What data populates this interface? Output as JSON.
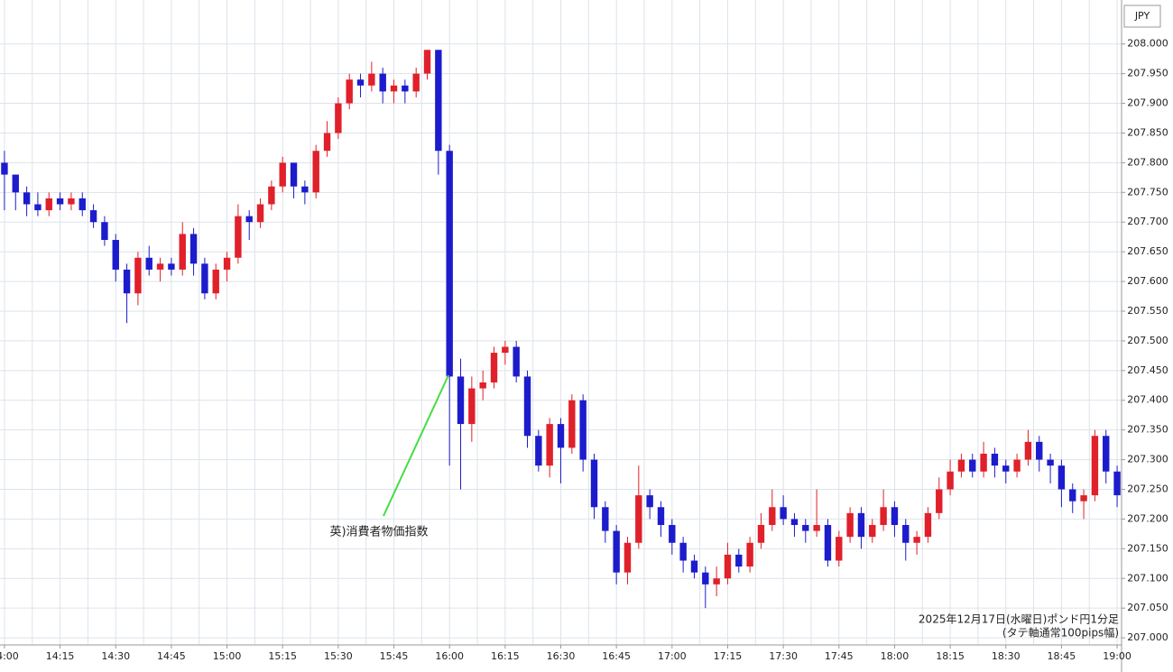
{
  "chart_data": {
    "type": "candlestick",
    "currency": "JPY",
    "note_title": "2025年12月17日(水曜日)ポンド円1分足",
    "note_sub": "(タテ軸通常100pips幅)",
    "annotation": "英)消費者物価指数",
    "up_color": "#e0202a",
    "down_color": "#1c1ccc",
    "grid": true,
    "xlim": [
      838.8,
      1141.2
    ],
    "ylim": [
      206.988,
      208.074
    ],
    "xticks": [
      {
        "value": 840,
        "label": "14:00"
      },
      {
        "value": 855,
        "label": "14:15"
      },
      {
        "value": 870,
        "label": "14:30"
      },
      {
        "value": 885,
        "label": "14:45"
      },
      {
        "value": 900,
        "label": "15:00"
      },
      {
        "value": 915,
        "label": "15:15"
      },
      {
        "value": 930,
        "label": "15:30"
      },
      {
        "value": 945,
        "label": "15:45"
      },
      {
        "value": 960,
        "label": "16:00"
      },
      {
        "value": 975,
        "label": "16:15"
      },
      {
        "value": 990,
        "label": "16:30"
      },
      {
        "value": 1005,
        "label": "16:45"
      },
      {
        "value": 1020,
        "label": "17:00"
      },
      {
        "value": 1035,
        "label": "17:15"
      },
      {
        "value": 1050,
        "label": "17:30"
      },
      {
        "value": 1065,
        "label": "17:45"
      },
      {
        "value": 1080,
        "label": "18:00"
      },
      {
        "value": 1095,
        "label": "18:15"
      },
      {
        "value": 1110,
        "label": "18:30"
      },
      {
        "value": 1125,
        "label": "18:45"
      },
      {
        "value": 1140,
        "label": "19:00"
      }
    ],
    "yticks": [
      {
        "value": 207,
        "label": "207.000"
      },
      {
        "value": 207.05,
        "label": "207.050"
      },
      {
        "value": 207.1,
        "label": "207.100"
      },
      {
        "value": 207.15,
        "label": "207.150"
      },
      {
        "value": 207.2,
        "label": "207.200"
      },
      {
        "value": 207.25,
        "label": "207.250"
      },
      {
        "value": 207.3,
        "label": "207.300"
      },
      {
        "value": 207.35,
        "label": "207.350"
      },
      {
        "value": 207.4,
        "label": "207.400"
      },
      {
        "value": 207.45,
        "label": "207.450"
      },
      {
        "value": 207.5,
        "label": "207.500"
      },
      {
        "value": 207.55,
        "label": "207.550"
      },
      {
        "value": 207.6,
        "label": "207.600"
      },
      {
        "value": 207.65,
        "label": "207.650"
      },
      {
        "value": 207.7,
        "label": "207.700"
      },
      {
        "value": 207.75,
        "label": "207.750"
      },
      {
        "value": 207.8,
        "label": "207.800"
      },
      {
        "value": 207.85,
        "label": "207.850"
      },
      {
        "value": 207.9,
        "label": "207.900"
      },
      {
        "value": 207.95,
        "label": "207.950"
      },
      {
        "value": 208,
        "label": "208.000"
      }
    ],
    "x": [
      840,
      843,
      846,
      849,
      852,
      855,
      858,
      861,
      864,
      867,
      870,
      873,
      876,
      879,
      882,
      885,
      888,
      891,
      894,
      897,
      900,
      903,
      906,
      909,
      912,
      915,
      918,
      921,
      924,
      927,
      930,
      933,
      936,
      939,
      942,
      945,
      948,
      951,
      954,
      957,
      960,
      963,
      966,
      969,
      972,
      975,
      978,
      981,
      984,
      987,
      990,
      993,
      996,
      999,
      1002,
      1005,
      1008,
      1011,
      1014,
      1017,
      1020,
      1023,
      1026,
      1029,
      1032,
      1035,
      1038,
      1041,
      1044,
      1047,
      1050,
      1053,
      1056,
      1059,
      1062,
      1065,
      1068,
      1071,
      1074,
      1077,
      1080,
      1083,
      1086,
      1089,
      1092,
      1095,
      1098,
      1101,
      1104,
      1107,
      1110,
      1113,
      1116,
      1119,
      1122,
      1125,
      1128,
      1131,
      1134,
      1137,
      1140
    ],
    "open": [
      207.8,
      207.78,
      207.75,
      207.73,
      207.72,
      207.74,
      207.73,
      207.74,
      207.72,
      207.7,
      207.67,
      207.62,
      207.58,
      207.64,
      207.62,
      207.63,
      207.62,
      207.68,
      207.63,
      207.58,
      207.62,
      207.64,
      207.71,
      207.7,
      207.73,
      207.76,
      207.8,
      207.76,
      207.75,
      207.82,
      207.85,
      207.9,
      207.94,
      207.93,
      207.95,
      207.92,
      207.93,
      207.92,
      207.95,
      207.99,
      207.82,
      207.44,
      207.36,
      207.42,
      207.43,
      207.48,
      207.49,
      207.44,
      207.34,
      207.29,
      207.36,
      207.32,
      207.4,
      207.3,
      207.22,
      207.18,
      207.11,
      207.16,
      207.24,
      207.22,
      207.19,
      207.16,
      207.13,
      207.11,
      207.09,
      207.1,
      207.14,
      207.12,
      207.16,
      207.19,
      207.22,
      207.2,
      207.19,
      207.18,
      207.19,
      207.13,
      207.17,
      207.21,
      207.17,
      207.19,
      207.22,
      207.19,
      207.16,
      207.17,
      207.21,
      207.25,
      207.28,
      207.3,
      207.28,
      207.31,
      207.29,
      207.28,
      207.3,
      207.33,
      207.3,
      207.29,
      207.25,
      207.23,
      207.24,
      207.34,
      207.28
    ],
    "high": [
      207.82,
      207.78,
      207.76,
      207.75,
      207.75,
      207.75,
      207.75,
      207.75,
      207.73,
      207.71,
      207.68,
      207.63,
      207.65,
      207.66,
      207.64,
      207.64,
      207.7,
      207.69,
      207.64,
      207.63,
      207.65,
      207.73,
      207.72,
      207.74,
      207.77,
      207.81,
      207.8,
      207.77,
      207.83,
      207.87,
      207.91,
      207.95,
      207.95,
      207.97,
      207.96,
      207.94,
      207.94,
      207.96,
      207.99,
      207.99,
      207.83,
      207.47,
      207.44,
      207.45,
      207.49,
      207.5,
      207.5,
      207.45,
      207.35,
      207.37,
      207.37,
      207.41,
      207.41,
      207.31,
      207.23,
      207.19,
      207.17,
      207.29,
      207.25,
      207.23,
      207.2,
      207.17,
      207.14,
      207.12,
      207.12,
      207.16,
      207.15,
      207.17,
      207.21,
      207.25,
      207.24,
      207.21,
      207.2,
      207.25,
      207.2,
      207.18,
      207.22,
      207.22,
      207.2,
      207.25,
      207.23,
      207.2,
      207.18,
      207.22,
      207.27,
      207.3,
      207.31,
      207.31,
      207.33,
      207.32,
      207.3,
      207.31,
      207.35,
      207.34,
      207.31,
      207.3,
      207.26,
      207.25,
      207.35,
      207.35,
      207.29
    ],
    "low": [
      207.72,
      207.72,
      207.71,
      207.71,
      207.71,
      207.72,
      207.72,
      207.71,
      207.69,
      207.66,
      207.6,
      207.53,
      207.56,
      207.61,
      207.6,
      207.61,
      207.61,
      207.61,
      207.57,
      207.57,
      207.6,
      207.63,
      207.67,
      207.69,
      207.72,
      207.75,
      207.74,
      207.73,
      207.74,
      207.81,
      207.84,
      207.89,
      207.91,
      207.92,
      207.9,
      207.9,
      207.9,
      207.91,
      207.94,
      207.78,
      207.29,
      207.25,
      207.33,
      207.4,
      207.42,
      207.46,
      207.43,
      207.32,
      207.28,
      207.27,
      207.26,
      207.31,
      207.28,
      207.2,
      207.16,
      207.09,
      207.09,
      207.15,
      207.2,
      207.17,
      207.14,
      207.11,
      207.1,
      207.05,
      207.07,
      207.09,
      207.11,
      207.11,
      207.15,
      207.18,
      207.19,
      207.17,
      207.16,
      207.17,
      207.12,
      207.12,
      207.16,
      207.15,
      207.16,
      207.18,
      207.17,
      207.13,
      207.14,
      207.16,
      207.2,
      207.24,
      207.27,
      207.27,
      207.27,
      207.27,
      207.26,
      207.27,
      207.29,
      207.28,
      207.26,
      207.22,
      207.21,
      207.2,
      207.23,
      207.26,
      207.22
    ],
    "close": [
      207.78,
      207.75,
      207.73,
      207.72,
      207.74,
      207.73,
      207.74,
      207.72,
      207.7,
      207.67,
      207.62,
      207.58,
      207.64,
      207.62,
      207.63,
      207.62,
      207.68,
      207.63,
      207.58,
      207.62,
      207.64,
      207.71,
      207.7,
      207.73,
      207.76,
      207.8,
      207.76,
      207.75,
      207.82,
      207.85,
      207.9,
      207.94,
      207.93,
      207.95,
      207.92,
      207.93,
      207.92,
      207.95,
      207.99,
      207.82,
      207.44,
      207.36,
      207.42,
      207.43,
      207.48,
      207.49,
      207.44,
      207.34,
      207.29,
      207.36,
      207.32,
      207.4,
      207.3,
      207.22,
      207.18,
      207.11,
      207.16,
      207.24,
      207.22,
      207.19,
      207.16,
      207.13,
      207.11,
      207.09,
      207.1,
      207.14,
      207.12,
      207.16,
      207.19,
      207.22,
      207.2,
      207.19,
      207.18,
      207.19,
      207.13,
      207.17,
      207.21,
      207.17,
      207.19,
      207.22,
      207.19,
      207.16,
      207.17,
      207.21,
      207.25,
      207.28,
      207.3,
      207.28,
      207.31,
      207.29,
      207.28,
      207.3,
      207.33,
      207.3,
      207.29,
      207.25,
      207.23,
      207.24,
      207.34,
      207.28,
      207.24
    ]
  }
}
